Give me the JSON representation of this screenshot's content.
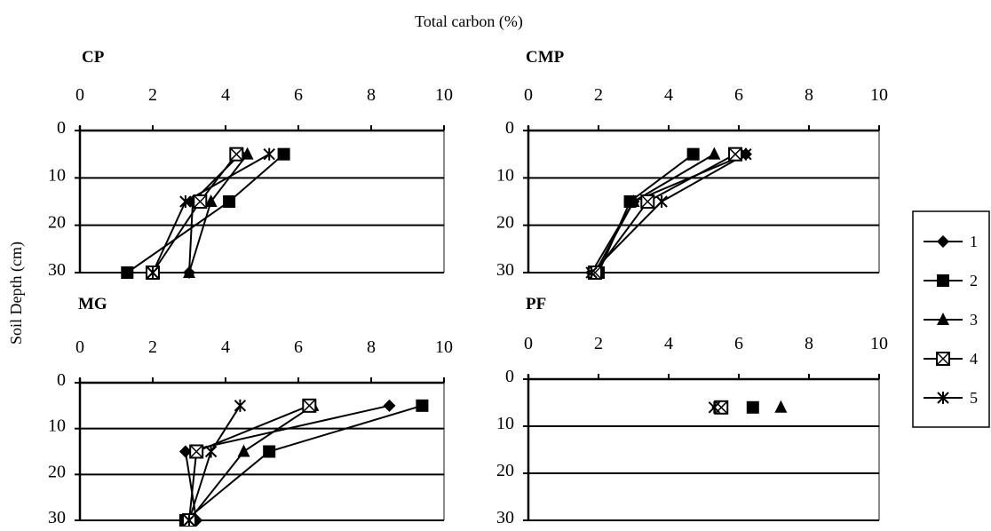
{
  "title": "Total carbon (%)",
  "ylabel": "Soil Depth (cm)",
  "chart_data": {
    "type": "line",
    "title": "Total carbon (%)",
    "xlabel": "",
    "ylabel": "Soil Depth (cm)",
    "xlim": [
      0,
      10
    ],
    "ylim": [
      0,
      30
    ],
    "x_ticks": [
      "0",
      "2",
      "4",
      "6",
      "8",
      "10"
    ],
    "y_ticks": [
      "0",
      "10",
      "20",
      "30"
    ],
    "y_reversed": true,
    "x_axis_position": "top",
    "grid": "horizontal",
    "legend_position": "right",
    "legend": [
      "1",
      "2",
      "3",
      "4",
      "5"
    ],
    "depths": [
      5,
      15,
      30
    ],
    "panels": [
      {
        "label": "CP",
        "series": [
          {
            "name": "1",
            "marker": "diamond",
            "points": [
              [
                4.4,
                5
              ],
              [
                3.1,
                15
              ],
              [
                3.0,
                30
              ]
            ]
          },
          {
            "name": "2",
            "marker": "square",
            "points": [
              [
                5.6,
                5
              ],
              [
                4.1,
                15
              ],
              [
                1.3,
                30
              ]
            ]
          },
          {
            "name": "3",
            "marker": "triangle",
            "points": [
              [
                4.6,
                5
              ],
              [
                3.6,
                15
              ],
              [
                3.0,
                30
              ]
            ]
          },
          {
            "name": "4",
            "marker": "boxed-x",
            "points": [
              [
                4.3,
                5
              ],
              [
                3.3,
                15
              ],
              [
                2.0,
                30
              ]
            ]
          },
          {
            "name": "5",
            "marker": "star",
            "points": [
              [
                5.2,
                5
              ],
              [
                2.9,
                15
              ],
              [
                2.0,
                30
              ]
            ]
          }
        ]
      },
      {
        "label": "CMP",
        "series": [
          {
            "name": "1",
            "marker": "diamond",
            "points": [
              [
                6.2,
                5
              ],
              [
                3.0,
                15
              ],
              [
                1.8,
                30
              ]
            ]
          },
          {
            "name": "2",
            "marker": "square",
            "points": [
              [
                4.7,
                5
              ],
              [
                2.9,
                15
              ],
              [
                2.0,
                30
              ]
            ]
          },
          {
            "name": "3",
            "marker": "triangle",
            "points": [
              [
                5.3,
                5
              ],
              [
                3.0,
                15
              ],
              [
                1.9,
                30
              ]
            ]
          },
          {
            "name": "4",
            "marker": "boxed-x",
            "points": [
              [
                5.9,
                5
              ],
              [
                3.4,
                15
              ],
              [
                1.9,
                30
              ]
            ]
          },
          {
            "name": "5",
            "marker": "star",
            "points": [
              [
                6.2,
                5
              ],
              [
                3.8,
                15
              ],
              [
                1.8,
                30
              ]
            ]
          }
        ]
      },
      {
        "label": "MG",
        "series": [
          {
            "name": "1",
            "marker": "diamond",
            "points": [
              [
                8.5,
                5
              ],
              [
                2.9,
                15
              ],
              [
                3.2,
                30
              ]
            ]
          },
          {
            "name": "2",
            "marker": "square",
            "points": [
              [
                9.4,
                5
              ],
              [
                5.2,
                15
              ],
              [
                2.9,
                30
              ]
            ]
          },
          {
            "name": "3",
            "marker": "triangle",
            "points": [
              [
                6.4,
                5
              ],
              [
                4.5,
                15
              ],
              [
                3.0,
                30
              ]
            ]
          },
          {
            "name": "4",
            "marker": "boxed-x",
            "points": [
              [
                6.3,
                5
              ],
              [
                3.2,
                15
              ],
              [
                3.0,
                30
              ]
            ]
          },
          {
            "name": "5",
            "marker": "star",
            "points": [
              [
                4.4,
                5
              ],
              [
                3.6,
                15
              ],
              [
                3.0,
                30
              ]
            ]
          }
        ]
      },
      {
        "label": "PF",
        "series": [
          {
            "name": "1",
            "marker": "diamond",
            "points": [
              [
                5.4,
                6
              ]
            ]
          },
          {
            "name": "2",
            "marker": "square",
            "points": [
              [
                6.4,
                6
              ]
            ]
          },
          {
            "name": "3",
            "marker": "triangle",
            "points": [
              [
                7.2,
                6
              ]
            ]
          },
          {
            "name": "4",
            "marker": "boxed-x",
            "points": [
              [
                5.5,
                6
              ]
            ]
          },
          {
            "name": "5",
            "marker": "star",
            "points": [
              [
                5.3,
                6
              ]
            ]
          }
        ]
      }
    ]
  }
}
